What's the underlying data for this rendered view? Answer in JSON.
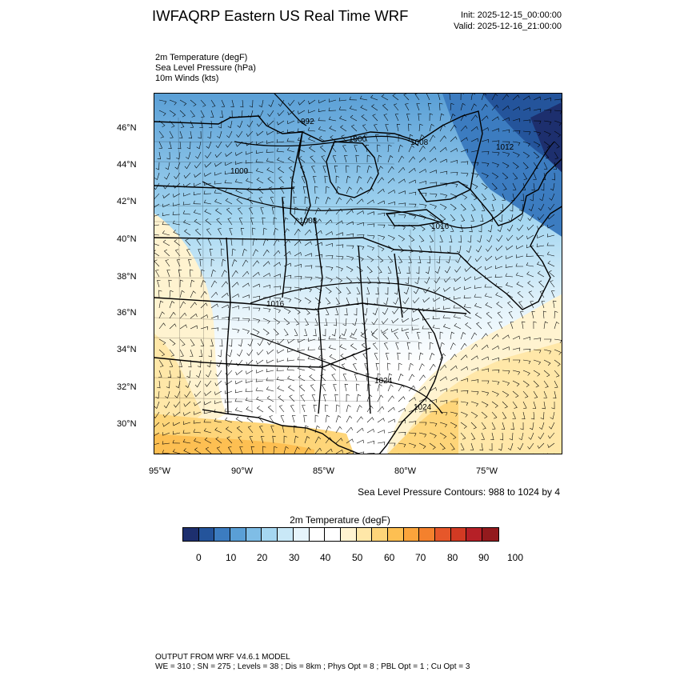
{
  "header": {
    "title": "IWFAQRP Eastern US Real Time WRF",
    "init": "Init: 2025-12-15_00:00:00",
    "valid": "Valid: 2025-12-16_21:00:00"
  },
  "fields": [
    "2m Temperature   (degF)",
    "Sea Level Pressure   (hPa)",
    "10m Winds   (kts)"
  ],
  "map": {
    "lat_labels": [
      "46°N",
      "44°N",
      "42°N",
      "40°N",
      "38°N",
      "36°N",
      "34°N",
      "32°N",
      "30°N"
    ],
    "lon_labels": [
      "95°W",
      "90°W",
      "85°W",
      "80°W",
      "75°W"
    ],
    "contour_labels": [
      "992",
      "1000",
      "1008",
      "1012",
      "1000",
      "1008",
      "1016",
      "1016",
      "1024",
      "1024"
    ],
    "contour_note": "Sea Level Pressure Contours: 988 to 1024 by 4"
  },
  "colorbar": {
    "title": "2m Temperature  (degF)",
    "colors": [
      "#1d2f6e",
      "#24549b",
      "#3c7cc0",
      "#5a9fd6",
      "#7fbde6",
      "#a5d7f1",
      "#c9e8f7",
      "#e6f4fb",
      "#ffffff",
      "#ffffff",
      "#fff3d0",
      "#ffe7a8",
      "#fed579",
      "#fdbf52",
      "#fba43b",
      "#f4812d",
      "#e6572a",
      "#d23a23",
      "#b62027",
      "#931a1d"
    ],
    "tick_labels": [
      "0",
      "10",
      "20",
      "30",
      "40",
      "50",
      "60",
      "70",
      "80",
      "90",
      "100"
    ]
  },
  "footer": {
    "line1": "OUTPUT FROM WRF V4.6.1 MODEL",
    "line2": "WE = 310 ; SN = 275 ; Levels = 38 ; Dis = 8km ; Phys Opt = 8 ; PBL Opt = 1 ; Cu Opt = 3"
  }
}
